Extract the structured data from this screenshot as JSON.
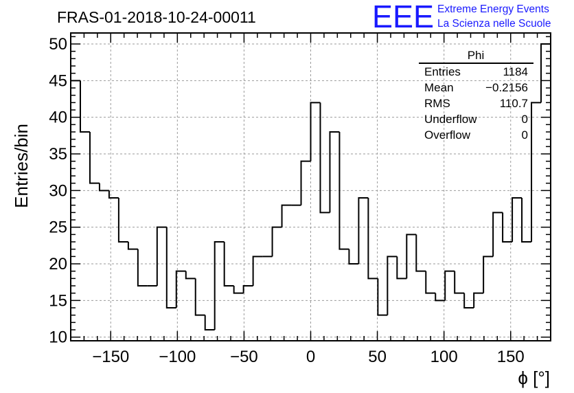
{
  "chart_data": {
    "type": "bar",
    "title": "FRAS-01-2018-10-24-00011",
    "xlabel": "ϕ [°]",
    "ylabel": "Entries/bin",
    "xlim": [
      -180,
      180
    ],
    "ylim": [
      9.5,
      51.5
    ],
    "x_ticks": [
      -150,
      -100,
      -50,
      0,
      50,
      100,
      150
    ],
    "x_tick_labels": [
      "−150",
      "−100",
      "−50",
      "0",
      "50",
      "100",
      "150"
    ],
    "y_ticks": [
      10,
      15,
      20,
      25,
      30,
      35,
      40,
      45,
      50
    ],
    "y_tick_labels": [
      "10",
      "15",
      "20",
      "25",
      "30",
      "35",
      "40",
      "45",
      "50"
    ],
    "grid": true,
    "bin_width": 7.2,
    "bin_edges_start": -180,
    "values": [
      45,
      38,
      31,
      30,
      29,
      23,
      22,
      17,
      17,
      25,
      14,
      19,
      18,
      13,
      11,
      23,
      17,
      16,
      17,
      21,
      21,
      25,
      28,
      28,
      34,
      42,
      27,
      38,
      22,
      20,
      29,
      18,
      13,
      21,
      18,
      24,
      19,
      16,
      15,
      19,
      16,
      14,
      16,
      21,
      27,
      23,
      29,
      23,
      42,
      50
    ],
    "stats_box": {
      "title": "Phi",
      "rows": [
        {
          "label": "Entries",
          "value": "1184"
        },
        {
          "label": "Mean",
          "value": "−0.2156"
        },
        {
          "label": "RMS",
          "value": "110.7"
        },
        {
          "label": "Underflow",
          "value": "0"
        },
        {
          "label": "Overflow",
          "value": "0"
        }
      ]
    }
  },
  "logo": {
    "mark": "EEE",
    "line1": "Extreme Energy Events",
    "line2": "La Scienza nelle Scuole",
    "color": "#1a1aff"
  }
}
